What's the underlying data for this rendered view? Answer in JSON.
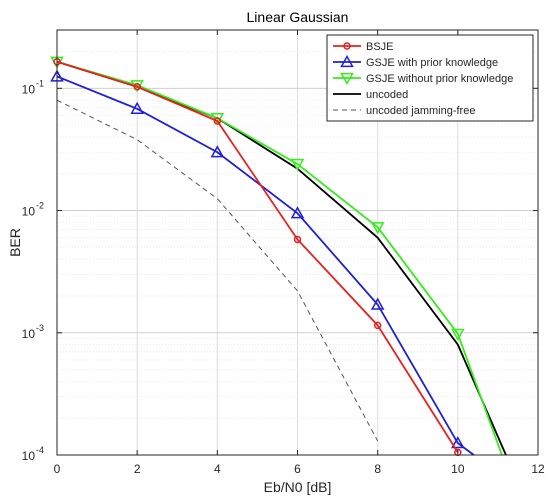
{
  "chart_data": {
    "type": "line",
    "title": "Linear Gaussian",
    "xlabel": "Eb/N0 [dB]",
    "ylabel": "BER",
    "xlim": [
      0,
      12
    ],
    "ylim": [
      0.0001,
      0.3
    ],
    "yscale": "log",
    "grid": true,
    "legend_position": "top-right",
    "x_ticks": [
      0,
      2,
      4,
      6,
      8,
      10,
      12
    ],
    "x_tick_labels": [
      "0",
      "2",
      "4",
      "6",
      "8",
      "10",
      "12"
    ],
    "y_ticks": [
      0.0001,
      0.001,
      0.01,
      0.1
    ],
    "y_tick_labels": [
      {
        "base": "10",
        "exp": "-4"
      },
      {
        "base": "10",
        "exp": "-3"
      },
      {
        "base": "10",
        "exp": "-2"
      },
      {
        "base": "10",
        "exp": "-1"
      }
    ],
    "series": [
      {
        "name": "BSJE",
        "color": "#e8201f",
        "marker": "circle",
        "dash": "solid",
        "x": [
          0,
          2,
          4,
          6,
          8,
          10
        ],
        "y": [
          0.165,
          0.103,
          0.054,
          0.0058,
          0.00115,
          0.000105
        ]
      },
      {
        "name": "GSJE with prior knowledge",
        "color": "#1f1fd6",
        "marker": "triangle-up",
        "dash": "solid",
        "x": [
          0,
          2,
          4,
          6,
          8,
          10,
          10.4
        ],
        "y": [
          0.125,
          0.068,
          0.03,
          0.0095,
          0.0017,
          0.000125,
          0.0001
        ],
        "marker_count": 6
      },
      {
        "name": "GSJE without prior knowledge",
        "color": "#33ee1a",
        "marker": "triangle-down",
        "dash": "solid",
        "x": [
          0,
          2,
          4,
          6,
          8,
          10,
          11.1
        ],
        "y": [
          0.165,
          0.106,
          0.057,
          0.024,
          0.0073,
          0.00098,
          0.0001
        ],
        "marker_count": 6
      },
      {
        "name": "uncoded",
        "color": "#000000",
        "marker": "none",
        "dash": "solid",
        "x": [
          0,
          2,
          4,
          6,
          8,
          10,
          11.2
        ],
        "y": [
          0.165,
          0.103,
          0.057,
          0.022,
          0.006,
          0.0008,
          0.0001
        ]
      },
      {
        "name": "uncoded jamming-free",
        "color": "#555555",
        "marker": "none",
        "dash": "dashed",
        "x": [
          0,
          2,
          4,
          6,
          8
        ],
        "y": [
          0.08,
          0.038,
          0.0125,
          0.0022,
          0.00013
        ]
      }
    ]
  }
}
